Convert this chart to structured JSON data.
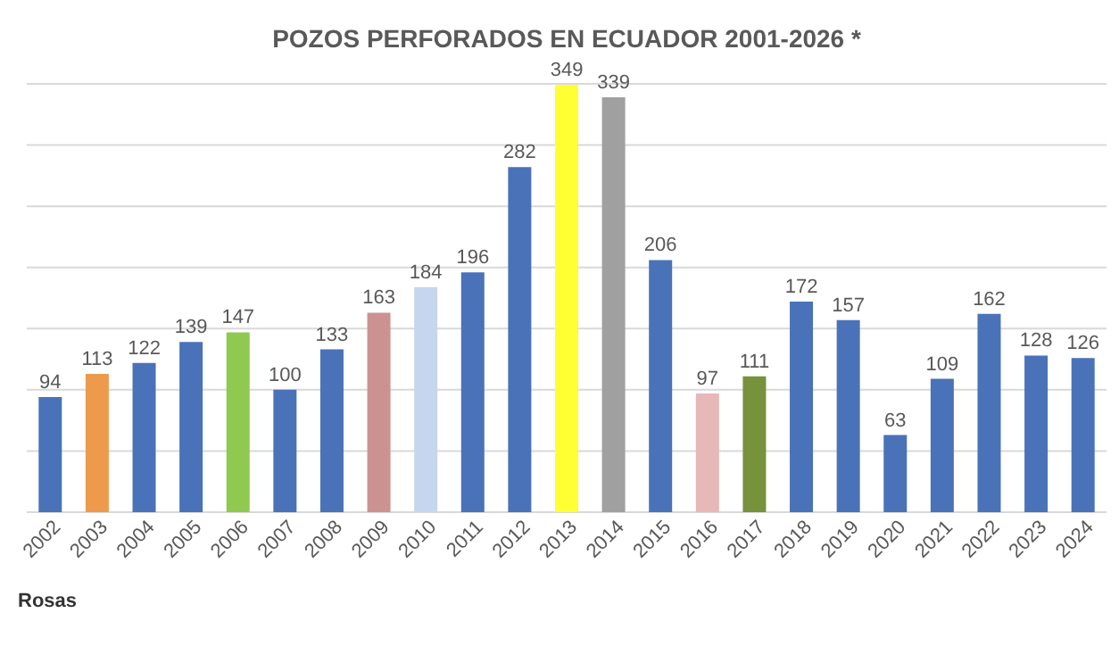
{
  "chart_data": {
    "type": "bar",
    "title": "POZOS PERFORADOS EN ECUADOR 2001-2026 *",
    "categories": [
      "2002",
      "2003",
      "2004",
      "2005",
      "2006",
      "2007",
      "2008",
      "2009",
      "2010",
      "2011",
      "2012",
      "2013",
      "2014",
      "2015",
      "2016",
      "2017",
      "2018",
      "2019",
      "2020",
      "2021",
      "2022",
      "2023",
      "2024"
    ],
    "values": [
      94,
      113,
      122,
      139,
      147,
      100,
      133,
      163,
      184,
      196,
      282,
      349,
      339,
      206,
      97,
      111,
      172,
      157,
      63,
      109,
      162,
      128,
      126
    ],
    "colors": [
      "#4a72b8",
      "#ee9a4d",
      "#4a72b8",
      "#4a72b8",
      "#8fc94f",
      "#4a72b8",
      "#4a72b8",
      "#cc9292",
      "#c6d6ee",
      "#4a72b8",
      "#4a72b8",
      "#ffff33",
      "#a0a0a0",
      "#4a72b8",
      "#e6b8b7",
      "#76923c",
      "#4a72b8",
      "#4a72b8",
      "#4a72b8",
      "#4a72b8",
      "#4a72b8",
      "#4a72b8",
      "#4a72b8"
    ],
    "ylim": [
      0,
      350
    ],
    "yticks": [
      {
        "value": 0,
        "label": null
      },
      {
        "value": 50,
        "label": null
      },
      {
        "value": 100,
        "label": null
      },
      {
        "value": 150,
        "label": null
      },
      {
        "value": 200,
        "label": null
      },
      {
        "value": 250,
        "label": null
      },
      {
        "value": 300,
        "label": null
      },
      {
        "value": 350,
        "label": null
      }
    ],
    "grid": "y",
    "data_labels": true,
    "tick_labels": "x",
    "annotations": [
      "Rosas"
    ]
  }
}
